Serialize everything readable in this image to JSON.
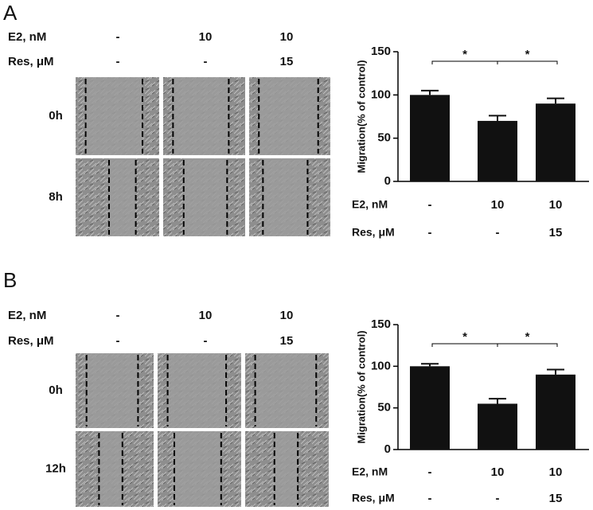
{
  "panels": [
    {
      "letter": "A",
      "conditions": [
        {
          "name": "E2, nM",
          "labels": [
            "-",
            "10",
            "10"
          ]
        },
        {
          "name": "Res, μM",
          "labels": [
            "-",
            "-",
            "15"
          ]
        }
      ],
      "times": [
        "0h",
        "8h"
      ]
    },
    {
      "letter": "B",
      "conditions": [
        {
          "name": "E2, nM",
          "labels": [
            "-",
            "10",
            "10"
          ]
        },
        {
          "name": "Res, μM",
          "labels": [
            "-",
            "-",
            "15"
          ]
        }
      ],
      "times": [
        "0h",
        "12h"
      ]
    }
  ],
  "chart_data": [
    {
      "type": "bar",
      "y_label": "Migration(% of control)",
      "category_rows": [
        {
          "name": "E2, nM",
          "labels": [
            "-",
            "10",
            "10"
          ]
        },
        {
          "name": "Res, μM",
          "labels": [
            "-",
            "-",
            "15"
          ]
        }
      ],
      "values": [
        100,
        70,
        90
      ],
      "errors": [
        5,
        6,
        6
      ],
      "color": "#111111",
      "ylim": [
        0,
        150
      ],
      "yticks": [
        0,
        50,
        100,
        150
      ],
      "significance": [
        {
          "label": "*",
          "pair": [
            0,
            1
          ]
        },
        {
          "label": "*",
          "pair": [
            1,
            2
          ]
        }
      ]
    },
    {
      "type": "bar",
      "y_label": "Migration(% of control)",
      "category_rows": [
        {
          "name": "E2, nM",
          "labels": [
            "-",
            "10",
            "10"
          ]
        },
        {
          "name": "Res, μM",
          "labels": [
            "-",
            "-",
            "15"
          ]
        }
      ],
      "values": [
        100,
        55,
        90
      ],
      "errors": [
        3,
        6,
        6
      ],
      "color": "#111111",
      "ylim": [
        0,
        150
      ],
      "yticks": [
        0,
        50,
        100,
        150
      ],
      "significance": [
        {
          "label": "*",
          "pair": [
            0,
            1
          ]
        },
        {
          "label": "*",
          "pair": [
            1,
            2
          ]
        }
      ]
    }
  ]
}
